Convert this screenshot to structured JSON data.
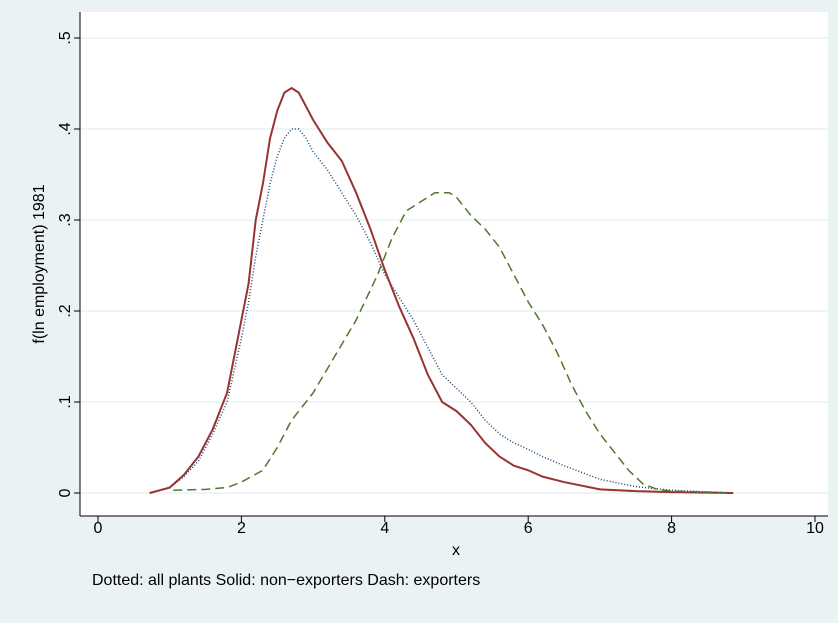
{
  "chart_data": {
    "type": "line",
    "y_label": "f(ln employment) 1981",
    "x_label": "x",
    "note": "Dotted: all plants Solid: non−exporters Dash: exporters",
    "xlim": [
      0,
      10
    ],
    "xticks": [
      0,
      2,
      4,
      6,
      8,
      10
    ],
    "ylim": [
      0,
      0.5
    ],
    "yticks": [
      0,
      {
        "value": 0.1,
        "label": ".1"
      },
      {
        "value": 0.2,
        "label": ".2"
      },
      {
        "value": 0.3,
        "label": ".3"
      },
      {
        "value": 0.4,
        "label": ".4"
      },
      {
        "value": 0.5,
        "label": ".5"
      }
    ],
    "grid": true,
    "series": [
      {
        "color": "#1a476f",
        "dash": "dotted",
        "x": [
          0.72,
          1.0,
          1.2,
          1.4,
          1.6,
          1.8,
          2.0,
          2.1,
          2.2,
          2.3,
          2.4,
          2.5,
          2.6,
          2.7,
          2.8,
          2.9,
          3.0,
          3.2,
          3.4,
          3.6,
          3.8,
          4.0,
          4.2,
          4.4,
          4.6,
          4.8,
          5.0,
          5.2,
          5.4,
          5.6,
          5.8,
          6.0,
          6.2,
          6.5,
          7.0,
          7.5,
          8.0,
          8.86
        ],
        "values": [
          0,
          0.006,
          0.018,
          0.035,
          0.065,
          0.1,
          0.17,
          0.21,
          0.26,
          0.3,
          0.34,
          0.37,
          0.39,
          0.4,
          0.4,
          0.39,
          0.375,
          0.355,
          0.33,
          0.305,
          0.275,
          0.24,
          0.215,
          0.19,
          0.16,
          0.13,
          0.115,
          0.1,
          0.08,
          0.065,
          0.055,
          0.048,
          0.04,
          0.03,
          0.015,
          0.007,
          0.003,
          0
        ]
      },
      {
        "color": "#993333",
        "dash": "solid",
        "x": [
          0.72,
          1.0,
          1.2,
          1.4,
          1.6,
          1.8,
          1.9,
          2.0,
          2.1,
          2.2,
          2.3,
          2.4,
          2.5,
          2.6,
          2.7,
          2.8,
          2.9,
          3.0,
          3.2,
          3.4,
          3.6,
          3.8,
          4.0,
          4.2,
          4.4,
          4.6,
          4.8,
          5.0,
          5.2,
          5.4,
          5.6,
          5.8,
          6.0,
          6.2,
          6.5,
          7.0,
          7.5,
          8.0,
          8.86
        ],
        "values": [
          0,
          0.006,
          0.02,
          0.04,
          0.07,
          0.11,
          0.15,
          0.19,
          0.23,
          0.3,
          0.34,
          0.39,
          0.42,
          0.44,
          0.445,
          0.44,
          0.425,
          0.41,
          0.385,
          0.365,
          0.33,
          0.29,
          0.245,
          0.205,
          0.17,
          0.13,
          0.1,
          0.09,
          0.075,
          0.055,
          0.04,
          0.03,
          0.025,
          0.018,
          0.012,
          0.004,
          0.002,
          0.001,
          0
        ]
      },
      {
        "color": "#55752f",
        "dash": "dashed",
        "x": [
          1.05,
          1.5,
          1.8,
          2.0,
          2.3,
          2.5,
          2.7,
          3.0,
          3.3,
          3.6,
          3.9,
          4.1,
          4.3,
          4.5,
          4.7,
          4.9,
          5.0,
          5.2,
          5.4,
          5.6,
          5.8,
          6.0,
          6.2,
          6.4,
          6.6,
          6.8,
          7.0,
          7.2,
          7.4,
          7.6,
          7.8,
          8.0,
          8.5,
          8.8
        ],
        "values": [
          0.003,
          0.004,
          0.006,
          0.012,
          0.025,
          0.05,
          0.08,
          0.11,
          0.15,
          0.19,
          0.24,
          0.28,
          0.31,
          0.32,
          0.33,
          0.33,
          0.325,
          0.305,
          0.29,
          0.27,
          0.24,
          0.21,
          0.185,
          0.155,
          0.12,
          0.09,
          0.065,
          0.045,
          0.025,
          0.01,
          0.004,
          0.002,
          0.001,
          0
        ]
      }
    ]
  }
}
